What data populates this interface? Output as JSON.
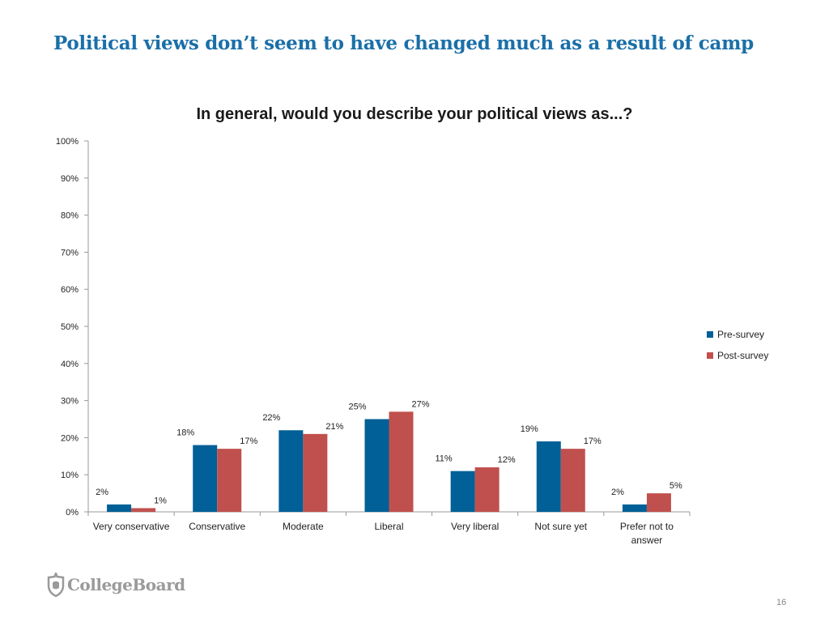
{
  "slide": {
    "title": "Political views don’t seem to have changed much as a result of camp",
    "page_number": "16"
  },
  "logo": {
    "text": "CollegeBoard"
  },
  "colors": {
    "title": "#1a6fa8",
    "pre": "#006097",
    "post": "#c0504d",
    "axis": "#999999"
  },
  "chart_data": {
    "type": "bar",
    "title": "In general, would you describe your political views as...?",
    "categories": [
      "Very conservative",
      "Conservative",
      "Moderate",
      "Liberal",
      "Very liberal",
      "Not sure yet",
      "Prefer not to answer"
    ],
    "series": [
      {
        "name": "Pre-survey",
        "values": [
          2,
          18,
          22,
          25,
          11,
          19,
          2
        ],
        "labels": [
          "2%",
          "18%",
          "22%",
          "25%",
          "11%",
          "19%",
          "2%"
        ]
      },
      {
        "name": "Post-survey",
        "values": [
          1,
          17,
          21,
          27,
          12,
          17,
          5
        ],
        "labels": [
          "1%",
          "17%",
          "21%",
          "27%",
          "12%",
          "17%",
          "5%"
        ]
      }
    ],
    "ylim": [
      0,
      100
    ],
    "yticks": [
      "0%",
      "10%",
      "20%",
      "30%",
      "40%",
      "50%",
      "60%",
      "70%",
      "80%",
      "90%",
      "100%"
    ],
    "xlabel": "",
    "ylabel": "",
    "grid": false,
    "legend": "right"
  }
}
